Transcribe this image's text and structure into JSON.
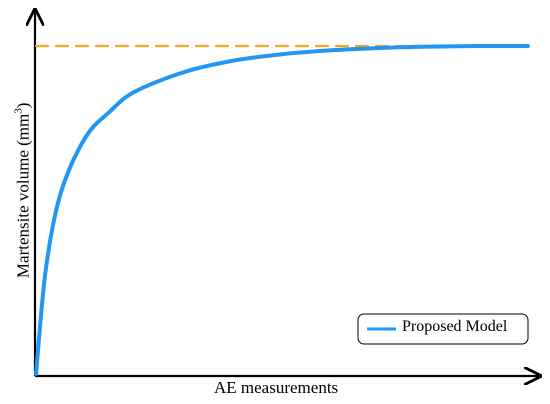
{
  "chart_data": {
    "type": "line",
    "title": "",
    "xlabel": "AE measurements",
    "ylabel": "Martensite volume (mm",
    "ylabel_sup": "3",
    "ylabel_close": ")",
    "grid": false,
    "legend_position": "bottom-right",
    "x": [
      0,
      0.02,
      0.05,
      0.1,
      0.15,
      0.2,
      0.3,
      0.4,
      0.5,
      0.6,
      0.7,
      0.8,
      0.9,
      1.0
    ],
    "series": [
      {
        "name": "Proposed Model",
        "color": "#2196f3",
        "style": "solid",
        "values": [
          0,
          0.32,
          0.55,
          0.72,
          0.8,
          0.86,
          0.92,
          0.955,
          0.975,
          0.987,
          0.994,
          0.998,
          1.0,
          1.0
        ]
      },
      {
        "name": "",
        "color": "#f5a623",
        "style": "dashed",
        "values": [
          1.0,
          1.0,
          1.0,
          1.0,
          1.0,
          1.0,
          1.0,
          1.0,
          1.0,
          1.0,
          1.0,
          1.0,
          1.0,
          1.0
        ]
      }
    ],
    "xlim": [
      0,
      1
    ],
    "ylim": [
      0,
      1
    ]
  }
}
